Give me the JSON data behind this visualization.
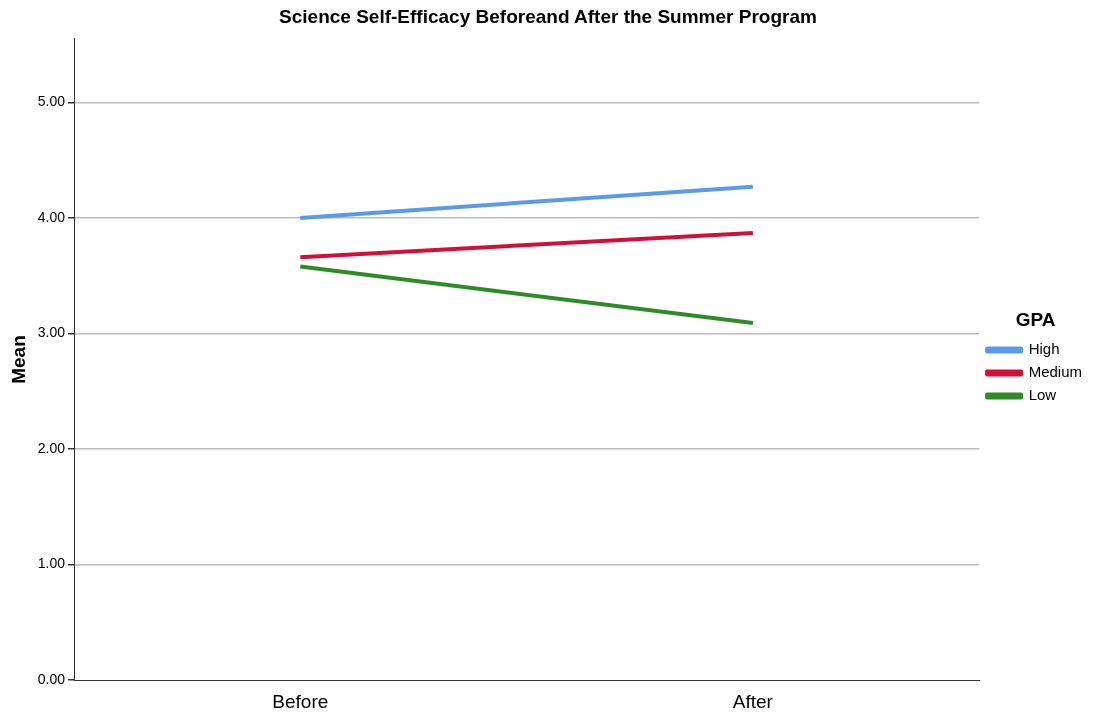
{
  "chart_data": {
    "type": "line",
    "title": "Science Self-Efficacy Beforeand After the Summer Program",
    "ylabel": "Mean",
    "legend_title": "GPA",
    "categories": [
      "Before",
      "After"
    ],
    "series": [
      {
        "name": "High",
        "color": "#5b9ae8",
        "values": [
          4.0,
          4.27
        ]
      },
      {
        "name": "Medium",
        "color": "#d0103a",
        "values": [
          3.66,
          3.87
        ]
      },
      {
        "name": "Low",
        "color": "#2e8b28",
        "values": [
          3.58,
          3.09
        ]
      }
    ],
    "ylim": [
      0,
      5.55
    ],
    "yticks": [
      {
        "value": 0,
        "label": "0.00"
      },
      {
        "value": 1,
        "label": "1.00"
      },
      {
        "value": 2,
        "label": "2.00"
      },
      {
        "value": 3,
        "label": "3.00"
      },
      {
        "value": 4,
        "label": "4.00"
      },
      {
        "value": 5,
        "label": "5.00"
      }
    ],
    "grid": "y",
    "legend": "right",
    "marker": "none",
    "line_style": "solid"
  }
}
